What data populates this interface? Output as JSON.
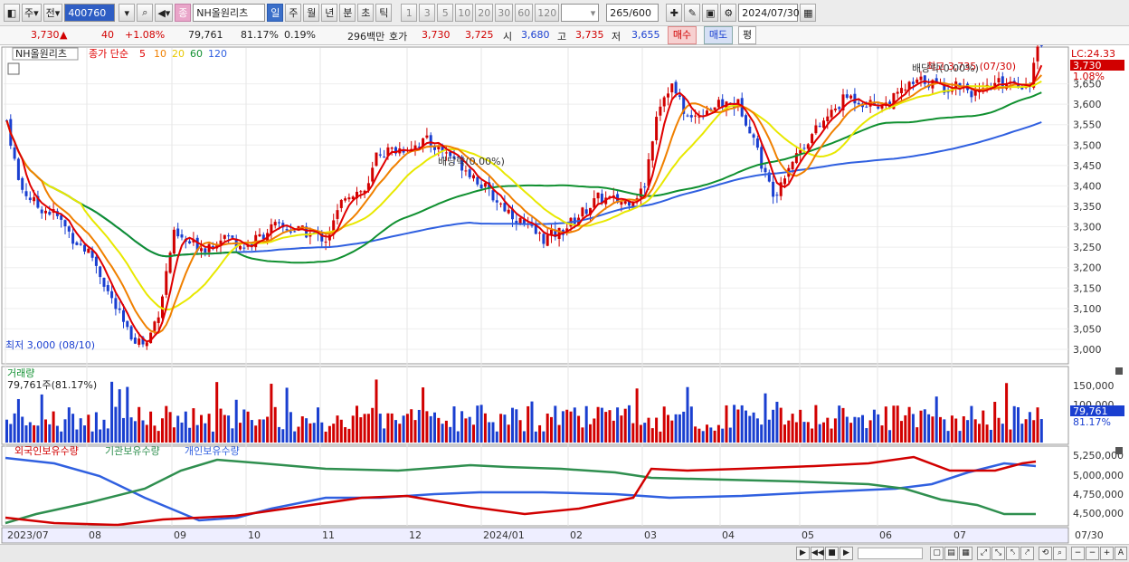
{
  "toolbar": {
    "period_label": "주",
    "prev_label": "전",
    "symbol_code": "400760",
    "symbol_name": "NH올원리츠",
    "intervals": [
      "일",
      "주",
      "월",
      "년",
      "분",
      "초",
      "틱"
    ],
    "active_interval": "일",
    "numbers": [
      "1",
      "3",
      "5",
      "10",
      "20",
      "30",
      "60",
      "120"
    ],
    "count": "265",
    "count_max": "/600",
    "date": "2024/07/30"
  },
  "info": {
    "price": "3,730",
    "change_arrow": "▲",
    "change": "40",
    "change_pct": "+1.08%",
    "volume": "79,761",
    "volume_ratio": "81.17%",
    "turnover": "0.19%",
    "amount": "296백만",
    "quote_label": "호가",
    "ask": "3,730",
    "bid": "3,725",
    "open_label": "시",
    "open": "3,680",
    "high_label": "고",
    "high": "3,735",
    "low_label": "저",
    "low": "3,655",
    "buy_label": "매수",
    "sell_label": "매도",
    "eval_label": "평"
  },
  "legend": {
    "name": "NH올원리츠",
    "price_label": "종가 단순",
    "ma": [
      {
        "label": "5",
        "color": "#e00000"
      },
      {
        "label": "10",
        "color": "#f08000"
      },
      {
        "label": "20",
        "color": "#e8e800"
      },
      {
        "label": "60",
        "color": "#109030"
      },
      {
        "label": "120",
        "color": "#3060e0"
      }
    ]
  },
  "annotations": {
    "low": "최저 3,000 (08/10)",
    "high": "최고 3,735 (07/30)",
    "dividend1": "배당락(0.00%)",
    "dividend2": "배당락(0.00%)"
  },
  "right_axis": {
    "lc": "LC:24.33",
    "current": "3,730",
    "pct": "1.08%",
    "ticks": [
      "3,650",
      "3,600",
      "3,550",
      "3,500",
      "3,450",
      "3,400",
      "3,350",
      "3,300",
      "3,250",
      "3,200",
      "3,150",
      "3,100",
      "3,050",
      "3,000"
    ]
  },
  "volume_panel": {
    "title": "거래량",
    "value": "79,761주(81.17%)",
    "ticks": [
      "150,000",
      "100,000"
    ],
    "current": "79,761",
    "pct": "81.17%"
  },
  "holding_panel": {
    "foreign": "외국인보유수량",
    "inst": "기관보유수량",
    "retail": "개인보유수량",
    "ticks": [
      "5,250,000",
      "5,000,000",
      "4,750,000",
      "4,500,000"
    ]
  },
  "x_axis": {
    "labels": [
      "2023/07",
      "08",
      "09",
      "10",
      "11",
      "12",
      "2024/01",
      "02",
      "03",
      "04",
      "05",
      "06",
      "07"
    ],
    "last": "07/30"
  },
  "colors": {
    "up": "#d10000",
    "down": "#1a3fd0",
    "ma5": "#e00000",
    "ma10": "#f08000",
    "ma20": "#e8e800",
    "ma60": "#109030",
    "ma120": "#3060e0",
    "foreign": "#d10000",
    "inst": "#2f8f4f",
    "retail": "#3060e0"
  }
}
